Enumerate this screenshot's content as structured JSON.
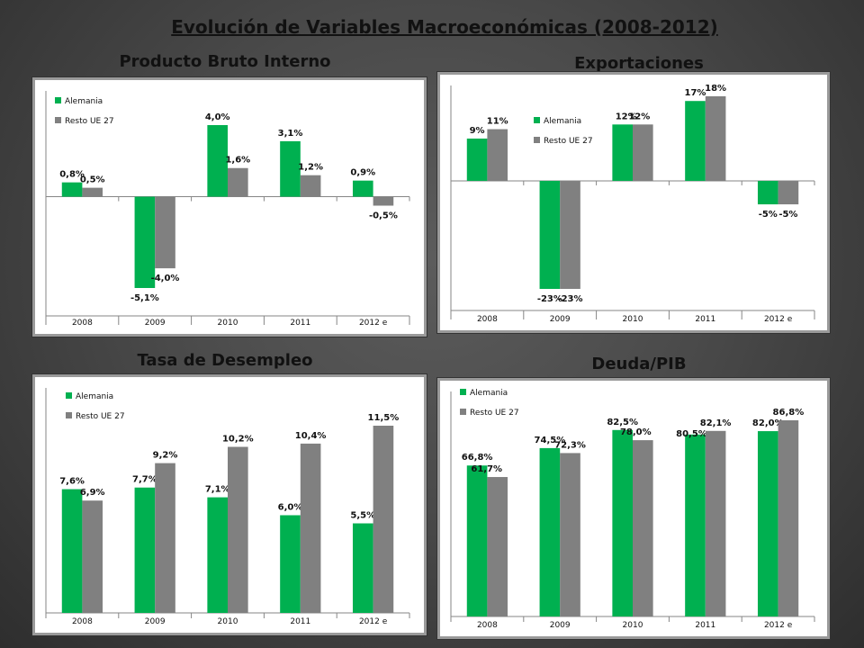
{
  "slide": {
    "title": "Evolución de Variables Macroeconómicas (2008-2012)"
  },
  "colors": {
    "alemania": "#00b050",
    "resto": "#808080"
  },
  "chart_data": [
    {
      "id": "pib",
      "type": "bar",
      "title": "Producto Bruto Interno",
      "categories": [
        "2008",
        "2009",
        "2010",
        "2011",
        "2012 e"
      ],
      "series": [
        {
          "name": "Alemania",
          "values": [
            0.8,
            -5.1,
            4.0,
            3.1,
            0.9
          ],
          "labels": [
            "0,8%",
            "-5,1%",
            "4,0%",
            "3,1%",
            "0,9%"
          ]
        },
        {
          "name": "Resto UE 27",
          "values": [
            0.5,
            -4.0,
            1.6,
            1.2,
            -0.5
          ],
          "labels": [
            "0,5%",
            "-4,0%",
            "1,6%",
            "1,2%",
            "-0,5%"
          ]
        }
      ],
      "ylim": [
        -5.1,
        4.0
      ],
      "legend": "top-left",
      "grid": false
    },
    {
      "id": "exp",
      "type": "bar",
      "title": "Exportaciones",
      "categories": [
        "2008",
        "2009",
        "2010",
        "2011",
        "2012 e"
      ],
      "series": [
        {
          "name": "Alemania",
          "values": [
            9,
            -23,
            12,
            17,
            -5
          ],
          "labels": [
            "9%",
            "-23%",
            "12%",
            "17%",
            "-5%"
          ]
        },
        {
          "name": "Resto UE 27",
          "values": [
            11,
            -23,
            12,
            18,
            -5
          ],
          "labels": [
            "11%",
            "-23%",
            "12%",
            "18%",
            "-5%"
          ]
        }
      ],
      "ylim": [
        -23,
        18
      ],
      "legend": "top-center",
      "grid": false
    },
    {
      "id": "desempleo",
      "type": "bar",
      "title": "Tasa de Desempleo",
      "categories": [
        "2008",
        "2009",
        "2010",
        "2011",
        "2012 e"
      ],
      "series": [
        {
          "name": "Alemania",
          "values": [
            7.6,
            7.7,
            7.1,
            6.0,
            5.5
          ],
          "labels": [
            "7,6%",
            "7,7%",
            "7,1%",
            "6,0%",
            "5,5%"
          ]
        },
        {
          "name": "Resto UE 27",
          "values": [
            6.9,
            9.2,
            10.2,
            10.4,
            11.5
          ],
          "labels": [
            "6,9%",
            "9,2%",
            "10,2%",
            "10,4%",
            "11,5%"
          ]
        }
      ],
      "ylim": [
        0,
        11.5
      ],
      "legend": "top-left",
      "grid": false
    },
    {
      "id": "deuda",
      "type": "bar",
      "title": "Deuda/PIB",
      "categories": [
        "2008",
        "2009",
        "2010",
        "2011",
        "2012 e"
      ],
      "series": [
        {
          "name": "Alemania",
          "values": [
            66.8,
            74.5,
            82.5,
            80.5,
            82.0
          ],
          "labels": [
            "66,8%",
            "74,5%",
            "82,5%",
            "80,5%",
            "82,0%"
          ]
        },
        {
          "name": "Resto UE 27",
          "values": [
            61.7,
            72.3,
            78.0,
            82.1,
            86.8
          ],
          "labels": [
            "61,7%",
            "72,3%",
            "78,0%",
            "82,1%",
            "86,8%"
          ]
        }
      ],
      "ylim": [
        0,
        86.8
      ],
      "legend": "top-left",
      "grid": false
    }
  ]
}
